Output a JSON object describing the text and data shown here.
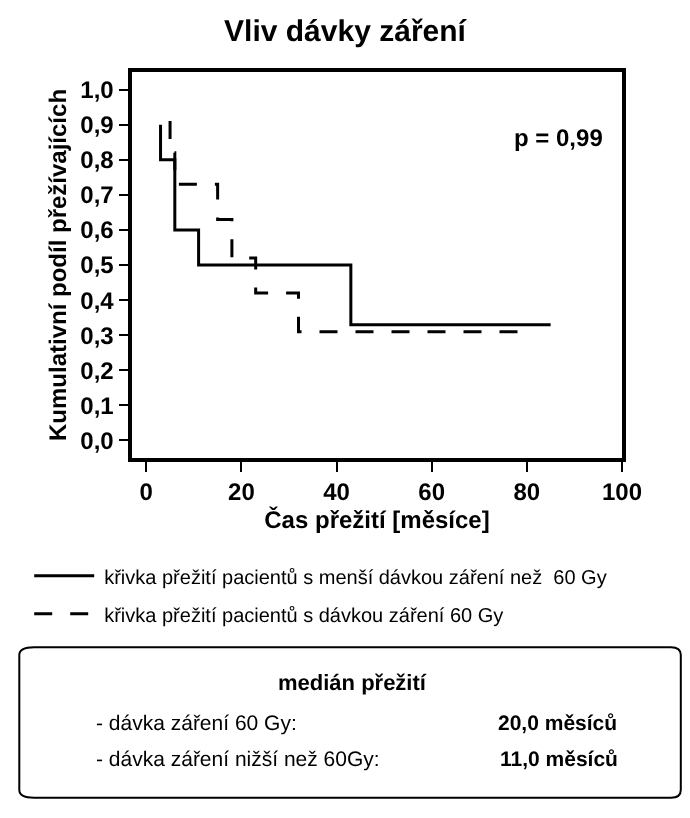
{
  "chart_data": {
    "type": "step",
    "title": "Vliv dávky záření",
    "xlabel": "Čas přežití [měsíce]",
    "ylabel": "Kumulativní podíl přežívajících",
    "xlim": [
      -3,
      100
    ],
    "xticks": [
      0,
      20,
      40,
      60,
      80,
      100
    ],
    "ylim": [
      -0.05,
      1.05
    ],
    "yticks": [
      {
        "value": 0,
        "label": "0,0"
      },
      {
        "value": 0.1,
        "label": "0,1"
      },
      {
        "value": 0.2,
        "label": "0,2"
      },
      {
        "value": 0.3,
        "label": "0,3"
      },
      {
        "value": 0.4,
        "label": "0,4"
      },
      {
        "value": 0.5,
        "label": "0,5"
      },
      {
        "value": 0.6,
        "label": "0,6"
      },
      {
        "value": 0.7,
        "label": "0,7"
      },
      {
        "value": 0.8,
        "label": "0,8"
      },
      {
        "value": 0.9,
        "label": "0,9"
      },
      {
        "value": 1.0,
        "label": "1,0"
      }
    ],
    "series": [
      {
        "name": "křivka přežití pacientů s menší dávkou záření než  60 Gy",
        "color": "#000000",
        "line_style": "solid",
        "x": [
          3,
          3,
          6,
          11,
          43,
          85
        ],
        "values": [
          0.9,
          0.8,
          0.6,
          0.5,
          0.33,
          0.33
        ]
      },
      {
        "name": "křivka přežití pacientů s dávkou záření 60 Gy",
        "color": "#000000",
        "line_style": "dashed",
        "x": [
          5,
          5,
          6,
          15,
          18,
          23,
          32,
          81
        ],
        "values": [
          0.91,
          0.82,
          0.73,
          0.63,
          0.52,
          0.42,
          0.31,
          0.31
        ]
      }
    ],
    "annotations": [
      "p = 0,99",
      "medián přežití",
      "- dávka záření 60 Gy:",
      "20,0 měsíců",
      "- dávka záření nižší než 60Gy:",
      "11,0 měsíců"
    ],
    "legend": "bottom",
    "marker": "none"
  }
}
